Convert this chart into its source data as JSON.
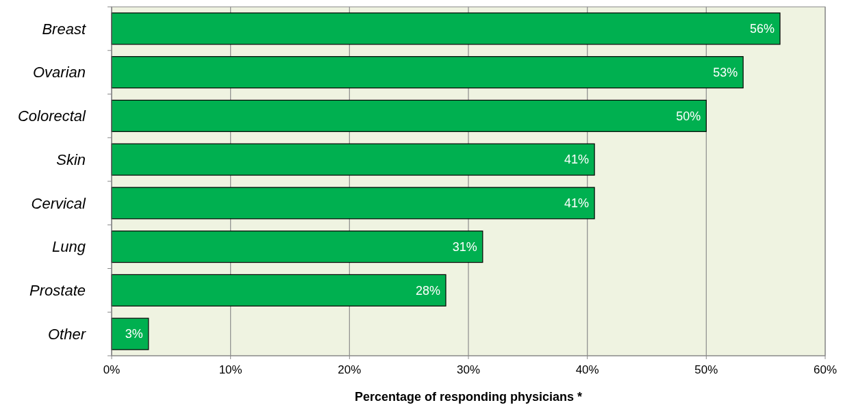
{
  "chart_data": {
    "type": "bar",
    "orientation": "horizontal",
    "categories": [
      "Breast",
      "Ovarian",
      "Colorectal",
      "Skin",
      "Cervical",
      "Lung",
      "Prostate",
      "Other"
    ],
    "values": [
      56.2,
      53.1,
      50,
      40.6,
      40.6,
      31.2,
      28.1,
      3.1
    ],
    "value_labels": [
      "56%",
      "53%",
      "50%",
      "41%",
      "41%",
      "31%",
      "28%",
      "3%"
    ],
    "color": "#00b050",
    "xlabel": "Percentage of responding physicians *",
    "xlim": [
      0,
      60
    ],
    "xticks": [
      {
        "value": 0,
        "label": "0%"
      },
      {
        "value": 10,
        "label": "10%"
      },
      {
        "value": 20,
        "label": "20%"
      },
      {
        "value": 30,
        "label": "30%"
      },
      {
        "value": 40,
        "label": "40%"
      },
      {
        "value": 50,
        "label": "50%"
      },
      {
        "value": 60,
        "label": "60%"
      }
    ],
    "grid": "x"
  }
}
